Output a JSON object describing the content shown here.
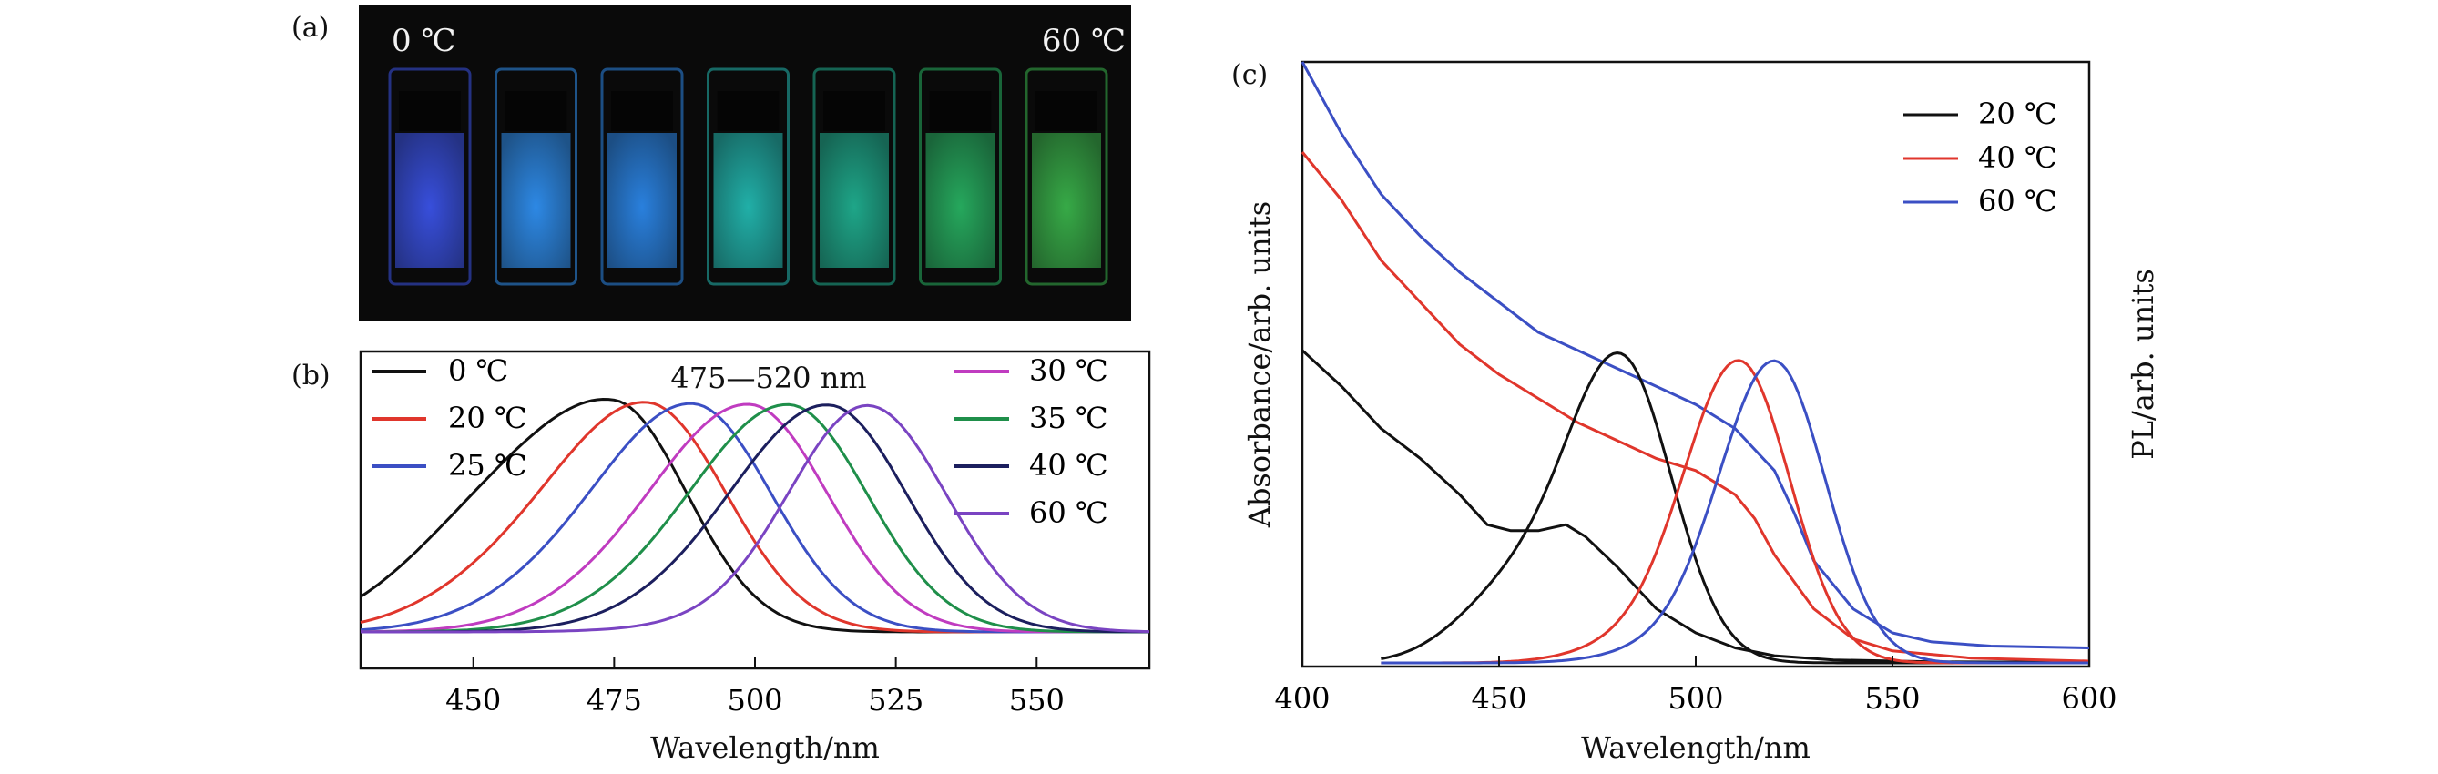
{
  "chart_data": [
    {
      "panel": "(a)",
      "type": "image",
      "labels": [
        "0 ℃",
        "60 ℃"
      ],
      "vial_colors": [
        "#3a52e6",
        "#2f8ff0",
        "#2b86e8",
        "#22b8b0",
        "#1fae8f",
        "#27b061",
        "#39b24a"
      ]
    },
    {
      "panel": "(b)",
      "type": "line",
      "annotation": "475—520 nm",
      "xlabel": "Wavelength/nm",
      "ylabel": "",
      "xlim": [
        430,
        570
      ],
      "ylim": [
        0,
        1.1
      ],
      "x_ticks": [
        450,
        475,
        500,
        525,
        550
      ],
      "grid": false,
      "legend_left": [
        "0 ℃",
        "20 ℃",
        "25 ℃"
      ],
      "legend_right": [
        "30 ℃",
        "35 ℃",
        "40 ℃",
        "60 ℃"
      ],
      "series": [
        {
          "name": "0 ℃",
          "color": "#111111",
          "peak": 475,
          "left_width": 19,
          "right_width": 13,
          "shoulder": 0.2
        },
        {
          "name": "20 ℃",
          "color": "#e0362c",
          "peak": 481,
          "left_width": 17,
          "right_width": 14,
          "shoulder": 0.12
        },
        {
          "name": "25 ℃",
          "color": "#3b4fc4",
          "peak": 489,
          "left_width": 17,
          "right_width": 14,
          "shoulder": 0.08
        },
        {
          "name": "30 ℃",
          "color": "#c03cc0",
          "peak": 499,
          "left_width": 17,
          "right_width": 14,
          "shoulder": 0.06
        },
        {
          "name": "35 ℃",
          "color": "#1f8f4a",
          "peak": 506,
          "left_width": 17,
          "right_width": 14,
          "shoulder": 0.05
        },
        {
          "name": "40 ℃",
          "color": "#1c1f5e",
          "peak": 513,
          "left_width": 17,
          "right_width": 14,
          "shoulder": 0.04
        },
        {
          "name": "60 ℃",
          "color": "#7a44c2",
          "peak": 520,
          "left_width": 14,
          "right_width": 14,
          "shoulder": 0.02
        }
      ]
    },
    {
      "panel": "(c)",
      "type": "line",
      "xlabel": "Wavelength/nm",
      "ylabel_left": "Absorbance/arb. units",
      "ylabel_right": "PL/arb. units",
      "xlim": [
        400,
        600
      ],
      "ylim": [
        0,
        1
      ],
      "x_ticks": [
        400,
        450,
        500,
        550,
        600
      ],
      "grid": false,
      "legend": [
        "20 ℃",
        "40 ℃",
        "60 ℃"
      ],
      "absorbance": [
        {
          "name": "20 ℃",
          "color": "#111111",
          "points": [
            [
              400,
              0.52
            ],
            [
              410,
              0.46
            ],
            [
              420,
              0.39
            ],
            [
              430,
              0.34
            ],
            [
              440,
              0.28
            ],
            [
              447,
              0.23
            ],
            [
              453,
              0.22
            ],
            [
              460,
              0.22
            ],
            [
              467,
              0.23
            ],
            [
              472,
              0.21
            ],
            [
              480,
              0.16
            ],
            [
              490,
              0.09
            ],
            [
              500,
              0.05
            ],
            [
              510,
              0.025
            ],
            [
              520,
              0.012
            ],
            [
              535,
              0.005
            ],
            [
              560,
              0.002
            ],
            [
              600,
              0.001
            ]
          ]
        },
        {
          "name": "40 ℃",
          "color": "#e0362c",
          "points": [
            [
              400,
              0.85
            ],
            [
              410,
              0.77
            ],
            [
              420,
              0.67
            ],
            [
              430,
              0.6
            ],
            [
              440,
              0.53
            ],
            [
              450,
              0.48
            ],
            [
              460,
              0.44
            ],
            [
              470,
              0.4
            ],
            [
              480,
              0.37
            ],
            [
              490,
              0.34
            ],
            [
              500,
              0.32
            ],
            [
              510,
              0.28
            ],
            [
              515,
              0.24
            ],
            [
              520,
              0.18
            ],
            [
              530,
              0.09
            ],
            [
              540,
              0.04
            ],
            [
              550,
              0.02
            ],
            [
              570,
              0.008
            ],
            [
              600,
              0.003
            ]
          ]
        },
        {
          "name": "60 ℃",
          "color": "#3b4fc4",
          "points": [
            [
              400,
              1.0
            ],
            [
              410,
              0.88
            ],
            [
              420,
              0.78
            ],
            [
              430,
              0.71
            ],
            [
              440,
              0.65
            ],
            [
              450,
              0.6
            ],
            [
              460,
              0.55
            ],
            [
              470,
              0.52
            ],
            [
              480,
              0.49
            ],
            [
              490,
              0.46
            ],
            [
              500,
              0.43
            ],
            [
              510,
              0.39
            ],
            [
              520,
              0.32
            ],
            [
              525,
              0.25
            ],
            [
              530,
              0.17
            ],
            [
              540,
              0.09
            ],
            [
              550,
              0.05
            ],
            [
              560,
              0.035
            ],
            [
              575,
              0.028
            ],
            [
              600,
              0.025
            ]
          ]
        }
      ],
      "pl": [
        {
          "name": "20 ℃",
          "color": "#111111",
          "peak": 481,
          "left_width": 14,
          "right_width": 13,
          "shoulder": 0.22,
          "height": 0.5
        },
        {
          "name": "40 ℃",
          "color": "#e0362c",
          "peak": 511,
          "left_width": 14,
          "right_width": 13,
          "shoulder": 0.05,
          "height": 0.5
        },
        {
          "name": "60 ℃",
          "color": "#3b4fc4",
          "peak": 520,
          "left_width": 14,
          "right_width": 13,
          "shoulder": 0.04,
          "height": 0.5
        }
      ]
    }
  ]
}
